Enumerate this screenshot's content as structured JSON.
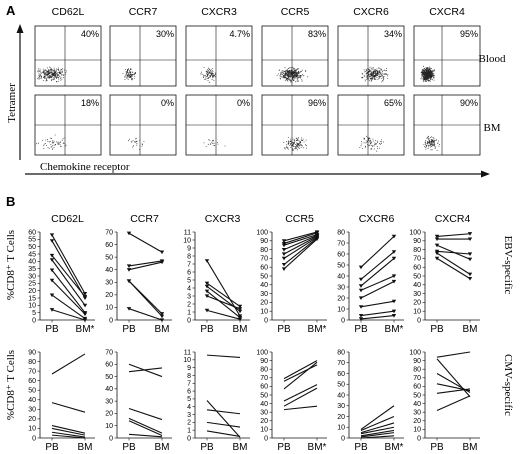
{
  "panels": {
    "a": "A",
    "b": "B"
  },
  "flow": {
    "markers": [
      "CD62L",
      "CCR7",
      "CXCR3",
      "CCR5",
      "CXCR6",
      "CXCR4"
    ],
    "rows": [
      {
        "label": "Blood",
        "percents": [
          "40%",
          "30%",
          "4.7%",
          "83%",
          "34%",
          "95%"
        ]
      },
      {
        "label": "BM",
        "percents": [
          "18%",
          "0%",
          "0%",
          "96%",
          "65%",
          "90%"
        ]
      }
    ],
    "y_axis_label": "Tetramer",
    "x_axis_label": "Chemokine receptor"
  },
  "lines": {
    "y_axis_label": "%CD8⁺ T Cells",
    "row_labels": [
      "EBV-specific",
      "CMV-specific"
    ],
    "markers": [
      "CD62L",
      "CCR7",
      "CXCR3",
      "CCR5",
      "CXCR6",
      "CXCR4"
    ]
  },
  "colors": {
    "ink": "#111111",
    "dots": "#222222"
  },
  "chart_data": [
    {
      "type": "line",
      "title": "CD62L",
      "row": "EBV-specific",
      "categories": [
        "PB",
        "BM"
      ],
      "tick_labels": [
        "PB",
        "BM*"
      ],
      "ylim": [
        0,
        60
      ],
      "yticks": [
        0,
        5,
        10,
        15,
        20,
        25,
        30,
        35,
        40,
        45,
        50,
        55,
        60
      ],
      "marker": "triangle",
      "series": [
        {
          "values": [
            58,
            18
          ]
        },
        {
          "values": [
            54,
            15
          ]
        },
        {
          "values": [
            44,
            16
          ]
        },
        {
          "values": [
            41,
            10
          ]
        },
        {
          "values": [
            34,
            5
          ]
        },
        {
          "values": [
            27,
            4
          ]
        },
        {
          "values": [
            17,
            1
          ]
        },
        {
          "values": [
            7,
            0
          ]
        }
      ]
    },
    {
      "type": "line",
      "title": "CCR7",
      "row": "EBV-specific",
      "categories": [
        "PB",
        "BM"
      ],
      "tick_labels": [
        "PB",
        "BM"
      ],
      "ylim": [
        0,
        70
      ],
      "yticks": [
        0,
        10,
        20,
        30,
        40,
        50,
        60,
        70
      ],
      "marker": "triangle",
      "series": [
        {
          "values": [
            69,
            54
          ]
        },
        {
          "values": [
            43,
            47
          ]
        },
        {
          "values": [
            40,
            46
          ]
        },
        {
          "values": [
            31,
            5
          ]
        },
        {
          "values": [
            31,
            3
          ]
        },
        {
          "values": [
            9,
            0
          ]
        }
      ]
    },
    {
      "type": "line",
      "title": "CXCR3",
      "row": "EBV-specific",
      "categories": [
        "PB",
        "BM"
      ],
      "tick_labels": [
        "PB",
        "BM"
      ],
      "ylim": [
        0,
        11
      ],
      "yticks": [
        0,
        1,
        2,
        3,
        4,
        5,
        6,
        7,
        8,
        9,
        10,
        11
      ],
      "marker": "triangle",
      "series": [
        {
          "values": [
            7.4,
            0.5
          ]
        },
        {
          "values": [
            4.6,
            1.7
          ]
        },
        {
          "values": [
            4.2,
            1.1
          ]
        },
        {
          "values": [
            3.6,
            0.3
          ]
        },
        {
          "values": [
            3.0,
            1.4
          ]
        },
        {
          "values": [
            1.2,
            0.1
          ]
        }
      ]
    },
    {
      "type": "line",
      "title": "CCR5",
      "row": "EBV-specific",
      "categories": [
        "PB",
        "BM"
      ],
      "tick_labels": [
        "PB",
        "BM*"
      ],
      "ylim": [
        0,
        100
      ],
      "yticks": [
        0,
        10,
        20,
        30,
        40,
        50,
        60,
        70,
        80,
        90,
        100
      ],
      "marker": "triangle",
      "series": [
        {
          "values": [
            90,
            100
          ]
        },
        {
          "values": [
            87,
            99
          ]
        },
        {
          "values": [
            85,
            97
          ]
        },
        {
          "values": [
            80,
            96
          ]
        },
        {
          "values": [
            75,
            95
          ]
        },
        {
          "values": [
            70,
            94
          ]
        },
        {
          "values": [
            63,
            93
          ]
        },
        {
          "values": [
            58,
            92
          ]
        }
      ]
    },
    {
      "type": "line",
      "title": "CXCR6",
      "row": "EBV-specific",
      "categories": [
        "PB",
        "BM"
      ],
      "tick_labels": [
        "PB",
        "BM*"
      ],
      "ylim": [
        0,
        80
      ],
      "yticks": [
        0,
        10,
        20,
        30,
        40,
        50,
        60,
        70,
        80
      ],
      "marker": "triangle",
      "series": [
        {
          "values": [
            48,
            76
          ]
        },
        {
          "values": [
            37,
            62
          ]
        },
        {
          "values": [
            31,
            56
          ]
        },
        {
          "values": [
            27,
            40
          ]
        },
        {
          "values": [
            20,
            35
          ]
        },
        {
          "values": [
            12,
            17
          ]
        },
        {
          "values": [
            4,
            8
          ]
        },
        {
          "values": [
            1,
            4
          ]
        }
      ]
    },
    {
      "type": "line",
      "title": "CXCR4",
      "row": "EBV-specific",
      "categories": [
        "PB",
        "BM"
      ],
      "tick_labels": [
        "PB",
        "BM"
      ],
      "ylim": [
        0,
        100
      ],
      "yticks": [
        0,
        10,
        20,
        30,
        40,
        50,
        60,
        70,
        80,
        90,
        100
      ],
      "marker": "triangle",
      "series": [
        {
          "values": [
            95,
            98
          ]
        },
        {
          "values": [
            92,
            92
          ]
        },
        {
          "values": [
            85,
            69
          ]
        },
        {
          "values": [
            78,
            75
          ]
        },
        {
          "values": [
            76,
            52
          ]
        },
        {
          "values": [
            70,
            47
          ]
        }
      ]
    },
    {
      "type": "line",
      "title": "CD62L",
      "row": "CMV-specific",
      "categories": [
        "PB",
        "BM"
      ],
      "tick_labels": [
        "PB",
        "BM"
      ],
      "ylim": [
        0,
        90
      ],
      "yticks": [
        0,
        10,
        20,
        30,
        40,
        50,
        60,
        70,
        80,
        90
      ],
      "marker": "none",
      "series": [
        {
          "values": [
            67,
            88
          ]
        },
        {
          "values": [
            37,
            27
          ]
        },
        {
          "values": [
            13,
            5
          ]
        },
        {
          "values": [
            10,
            3
          ]
        },
        {
          "values": [
            6,
            1
          ]
        },
        {
          "values": [
            3,
            0
          ]
        }
      ]
    },
    {
      "type": "line",
      "title": "CCR7",
      "row": "CMV-specific",
      "categories": [
        "PB",
        "BM"
      ],
      "tick_labels": [
        "PB",
        "BM"
      ],
      "ylim": [
        0,
        70
      ],
      "yticks": [
        0,
        10,
        20,
        30,
        40,
        50,
        60,
        70
      ],
      "marker": "none",
      "series": [
        {
          "values": [
            60,
            50
          ]
        },
        {
          "values": [
            54,
            57
          ]
        },
        {
          "values": [
            24,
            15
          ]
        },
        {
          "values": [
            16,
            4
          ]
        },
        {
          "values": [
            14,
            2
          ]
        },
        {
          "values": [
            3,
            1
          ]
        }
      ]
    },
    {
      "type": "line",
      "title": "CXCR3",
      "row": "CMV-specific",
      "categories": [
        "PB",
        "BM"
      ],
      "tick_labels": [
        "PB",
        "BM"
      ],
      "ylim": [
        0,
        11
      ],
      "yticks": [
        0,
        1,
        2,
        3,
        4,
        5,
        6,
        7,
        8,
        9,
        10,
        11
      ],
      "marker": "none",
      "series": [
        {
          "values": [
            10.6,
            10.3
          ]
        },
        {
          "values": [
            4.8,
            0.1
          ]
        },
        {
          "values": [
            3.6,
            3.1
          ]
        },
        {
          "values": [
            2.0,
            1.4
          ]
        },
        {
          "values": [
            0.9,
            0.2
          ]
        }
      ]
    },
    {
      "type": "line",
      "title": "CCR5",
      "row": "CMV-specific",
      "categories": [
        "PB",
        "BM"
      ],
      "tick_labels": [
        "PB",
        "BM*"
      ],
      "ylim": [
        0,
        100
      ],
      "yticks": [
        0,
        10,
        20,
        30,
        40,
        50,
        60,
        70,
        80,
        90,
        100
      ],
      "marker": "none",
      "series": [
        {
          "values": [
            69,
            90
          ]
        },
        {
          "values": [
            66,
            85
          ]
        },
        {
          "values": [
            57,
            88
          ]
        },
        {
          "values": [
            43,
            62
          ]
        },
        {
          "values": [
            37,
            58
          ]
        },
        {
          "values": [
            33,
            37
          ]
        }
      ]
    },
    {
      "type": "line",
      "title": "CXCR6",
      "row": "CMV-specific",
      "categories": [
        "PB",
        "BM"
      ],
      "tick_labels": [
        "PB",
        "BM*"
      ],
      "ylim": [
        0,
        80
      ],
      "yticks": [
        0,
        10,
        20,
        30,
        40,
        50,
        60,
        70,
        80
      ],
      "marker": "none",
      "series": [
        {
          "values": [
            8,
            30
          ]
        },
        {
          "values": [
            7,
            20
          ]
        },
        {
          "values": [
            5,
            14
          ]
        },
        {
          "values": [
            4,
            10
          ]
        },
        {
          "values": [
            2,
            7
          ]
        },
        {
          "values": [
            1,
            5
          ]
        },
        {
          "values": [
            0,
            2
          ]
        }
      ]
    },
    {
      "type": "line",
      "title": "CXCR4",
      "row": "CMV-specific",
      "categories": [
        "PB",
        "BM"
      ],
      "tick_labels": [
        "PB",
        "BM"
      ],
      "ylim": [
        0,
        100
      ],
      "yticks": [
        0,
        10,
        20,
        30,
        40,
        50,
        60,
        70,
        80,
        90,
        100
      ],
      "marker": "none",
      "series": [
        {
          "values": [
            94,
            100
          ]
        },
        {
          "values": [
            92,
            48
          ]
        },
        {
          "values": [
            75,
            53
          ]
        },
        {
          "values": [
            63,
            55
          ]
        },
        {
          "values": [
            52,
            57
          ]
        },
        {
          "values": [
            32,
            49
          ]
        }
      ]
    }
  ]
}
